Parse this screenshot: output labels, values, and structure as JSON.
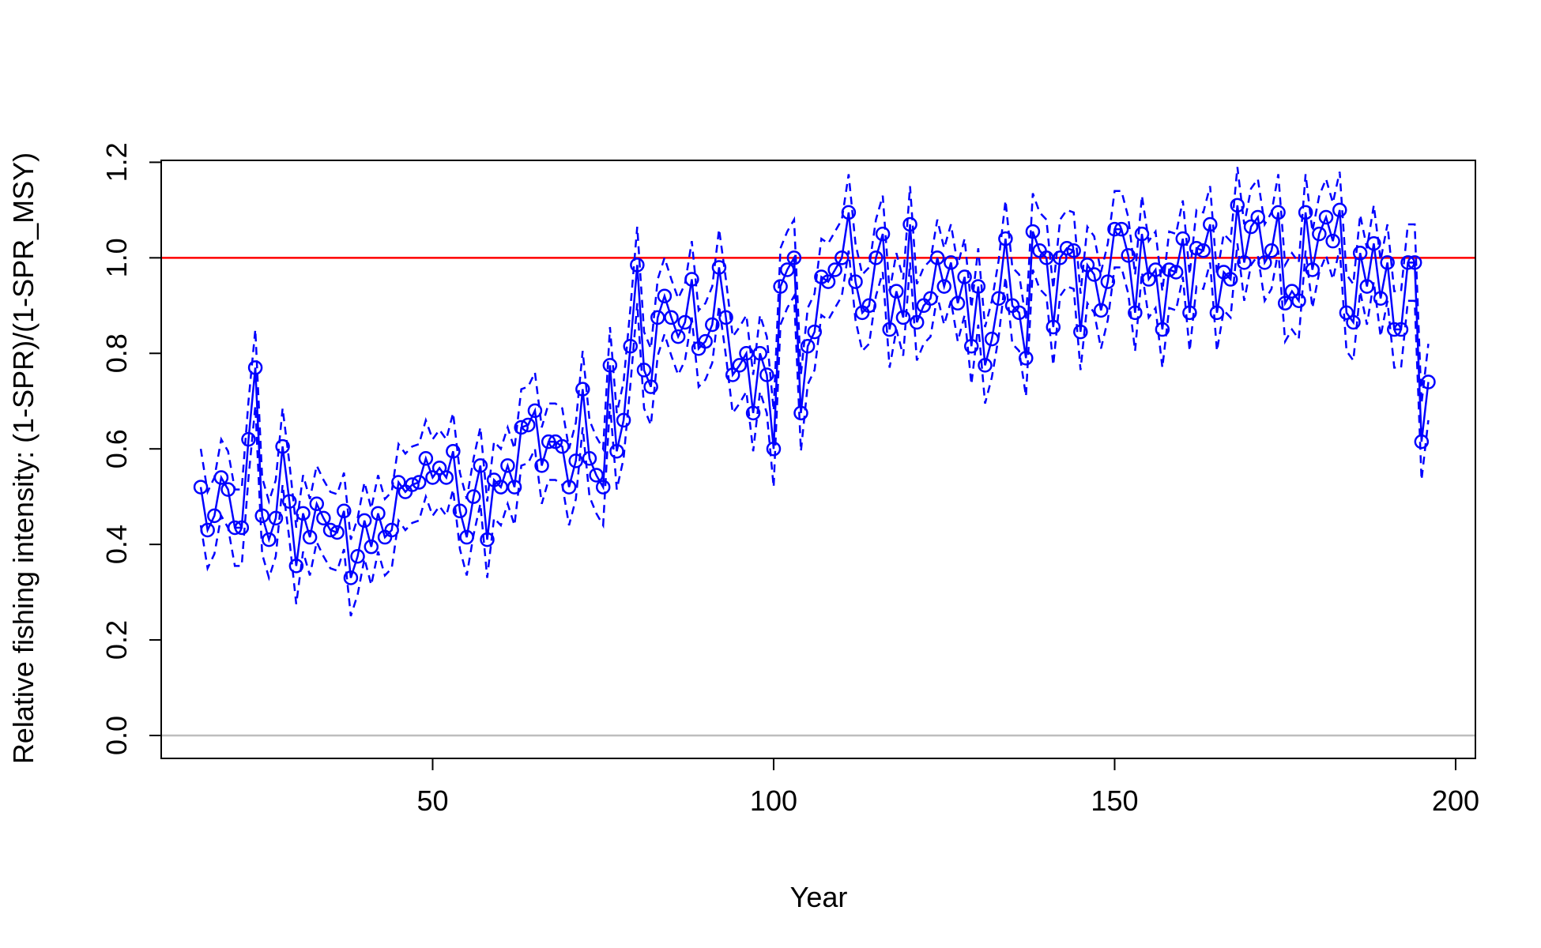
{
  "chart_data": {
    "type": "line",
    "x_label": "Year",
    "y_label": "Relative fishing intensity: (1-SPR)/(1-SPR_MSY)",
    "xlim": [
      10.2,
      202.9
    ],
    "ylim": [
      -0.048,
      1.204
    ],
    "xticks": [
      50,
      100,
      150,
      200
    ],
    "yticks": [
      {
        "value": 0,
        "label": "0.0"
      },
      0.2,
      0.4,
      0.6,
      0.8,
      {
        "value": 1,
        "label": "1.0"
      },
      1.2
    ],
    "hlines": [
      {
        "value": 0,
        "color": "#bebebe"
      },
      {
        "value": 1,
        "color": "#ff0000"
      }
    ],
    "x": [
      16,
      17,
      18,
      19,
      20,
      21,
      22,
      23,
      24,
      25,
      26,
      27,
      28,
      29,
      30,
      31,
      32,
      33,
      34,
      35,
      36,
      37,
      38,
      39,
      40,
      41,
      42,
      43,
      44,
      45,
      46,
      47,
      48,
      49,
      50,
      51,
      52,
      53,
      54,
      55,
      56,
      57,
      58,
      59,
      60,
      61,
      62,
      63,
      64,
      65,
      66,
      67,
      68,
      69,
      70,
      71,
      72,
      73,
      74,
      75,
      76,
      77,
      78,
      79,
      80,
      81,
      82,
      83,
      84,
      85,
      86,
      87,
      88,
      89,
      90,
      91,
      92,
      93,
      94,
      95,
      96,
      97,
      98,
      99,
      100,
      101,
      102,
      103,
      104,
      105,
      106,
      107,
      108,
      109,
      110,
      111,
      112,
      113,
      114,
      115,
      116,
      117,
      118,
      119,
      120,
      121,
      122,
      123,
      124,
      125,
      126,
      127,
      128,
      129,
      130,
      131,
      132,
      133,
      134,
      135,
      136,
      137,
      138,
      139,
      140,
      141,
      142,
      143,
      144,
      145,
      146,
      147,
      148,
      149,
      150,
      151,
      152,
      153,
      154,
      155,
      156,
      157,
      158,
      159,
      160,
      161,
      162,
      163,
      164,
      165,
      166,
      167,
      168,
      169,
      170,
      171,
      172,
      173,
      174,
      175,
      176,
      177,
      178,
      179,
      180,
      181,
      182,
      183,
      184,
      185,
      186,
      187,
      188,
      189,
      190,
      191,
      192,
      193,
      194,
      195,
      196
    ],
    "series": [
      {
        "color": "#0000ff",
        "style": "dashed",
        "markers": false,
        "values": [
          0.6,
          0.51,
          0.54,
          0.62,
          0.595,
          0.515,
          0.515,
          0.7,
          0.85,
          0.54,
          0.49,
          0.535,
          0.685,
          0.57,
          0.435,
          0.545,
          0.495,
          0.565,
          0.535,
          0.51,
          0.505,
          0.55,
          0.41,
          0.455,
          0.53,
          0.475,
          0.545,
          0.495,
          0.51,
          0.61,
          0.59,
          0.605,
          0.61,
          0.66,
          0.62,
          0.64,
          0.62,
          0.675,
          0.55,
          0.495,
          0.58,
          0.645,
          0.49,
          0.615,
          0.6,
          0.645,
          0.6,
          0.725,
          0.73,
          0.76,
          0.645,
          0.695,
          0.695,
          0.685,
          0.6,
          0.655,
          0.805,
          0.66,
          0.625,
          0.6,
          0.855,
          0.675,
          0.74,
          0.895,
          1.065,
          0.845,
          0.81,
          0.955,
          1.0,
          0.955,
          0.915,
          0.945,
          1.035,
          0.89,
          0.905,
          0.94,
          1.06,
          0.955,
          0.835,
          0.855,
          0.88,
          0.755,
          0.88,
          0.835,
          0.68,
          1.02,
          1.055,
          1.08,
          0.755,
          0.895,
          0.925,
          1.04,
          1.03,
          1.055,
          1.08,
          1.175,
          1.03,
          0.965,
          0.98,
          1.08,
          1.13,
          0.93,
          1.01,
          0.955,
          1.15,
          0.945,
          0.98,
          0.995,
          1.08,
          1.02,
          1.07,
          0.985,
          1.04,
          0.895,
          1.02,
          0.855,
          0.91,
          0.995,
          1.12,
          0.98,
          0.965,
          0.87,
          1.135,
          1.095,
          1.08,
          0.935,
          1.08,
          1.1,
          1.095,
          0.925,
          1.065,
          1.045,
          0.97,
          1.03,
          1.14,
          1.14,
          1.085,
          0.965,
          1.13,
          1.035,
          1.055,
          0.93,
          1.055,
          1.05,
          1.12,
          0.965,
          1.1,
          1.095,
          1.15,
          0.965,
          1.05,
          1.035,
          1.19,
          1.07,
          1.145,
          1.165,
          1.07,
          1.095,
          1.175,
          0.985,
          1.01,
          0.99,
          1.175,
          1.055,
          1.13,
          1.165,
          1.115,
          1.18,
          0.965,
          0.945,
          1.09,
          1.02,
          1.11,
          0.995,
          1.07,
          0.93,
          0.93,
          1.07,
          1.07,
          0.695,
          0.82
        ]
      },
      {
        "color": "#0000ff",
        "style": "dashed",
        "markers": false,
        "values": [
          0.44,
          0.35,
          0.38,
          0.46,
          0.435,
          0.355,
          0.355,
          0.54,
          0.69,
          0.38,
          0.33,
          0.375,
          0.525,
          0.41,
          0.275,
          0.385,
          0.335,
          0.405,
          0.375,
          0.35,
          0.345,
          0.39,
          0.25,
          0.295,
          0.37,
          0.315,
          0.385,
          0.335,
          0.35,
          0.45,
          0.43,
          0.445,
          0.45,
          0.5,
          0.46,
          0.48,
          0.46,
          0.515,
          0.39,
          0.335,
          0.42,
          0.485,
          0.33,
          0.455,
          0.44,
          0.485,
          0.44,
          0.565,
          0.57,
          0.6,
          0.485,
          0.535,
          0.535,
          0.525,
          0.44,
          0.495,
          0.645,
          0.5,
          0.465,
          0.44,
          0.695,
          0.515,
          0.58,
          0.735,
          0.905,
          0.685,
          0.65,
          0.795,
          0.84,
          0.795,
          0.755,
          0.785,
          0.875,
          0.73,
          0.745,
          0.78,
          0.9,
          0.795,
          0.675,
          0.695,
          0.72,
          0.595,
          0.72,
          0.675,
          0.52,
          0.86,
          0.895,
          0.92,
          0.595,
          0.735,
          0.765,
          0.88,
          0.87,
          0.895,
          0.92,
          1.015,
          0.87,
          0.805,
          0.82,
          0.92,
          0.97,
          0.77,
          0.85,
          0.795,
          0.99,
          0.785,
          0.82,
          0.835,
          0.92,
          0.86,
          0.91,
          0.825,
          0.88,
          0.735,
          0.86,
          0.695,
          0.75,
          0.835,
          0.96,
          0.82,
          0.805,
          0.71,
          0.975,
          0.935,
          0.92,
          0.775,
          0.92,
          0.94,
          0.935,
          0.765,
          0.905,
          0.885,
          0.81,
          0.87,
          0.98,
          0.98,
          0.925,
          0.805,
          0.97,
          0.875,
          0.895,
          0.77,
          0.895,
          0.89,
          0.96,
          0.805,
          0.94,
          0.935,
          0.99,
          0.805,
          0.89,
          0.875,
          1.03,
          0.91,
          0.985,
          1.005,
          0.91,
          0.935,
          1.015,
          0.825,
          0.85,
          0.83,
          1.015,
          0.895,
          0.97,
          1.005,
          0.955,
          1.02,
          0.805,
          0.785,
          0.93,
          0.86,
          0.95,
          0.835,
          0.91,
          0.77,
          0.77,
          0.91,
          0.91,
          0.535,
          0.66
        ]
      },
      {
        "color": "#0000ff",
        "style": "solid",
        "markers": true,
        "values": [
          0.52,
          0.43,
          0.46,
          0.54,
          0.515,
          0.435,
          0.435,
          0.62,
          0.77,
          0.46,
          0.41,
          0.455,
          0.605,
          0.49,
          0.355,
          0.465,
          0.415,
          0.485,
          0.455,
          0.43,
          0.425,
          0.47,
          0.33,
          0.375,
          0.45,
          0.395,
          0.465,
          0.415,
          0.43,
          0.53,
          0.51,
          0.525,
          0.53,
          0.58,
          0.54,
          0.56,
          0.54,
          0.595,
          0.47,
          0.415,
          0.5,
          0.565,
          0.41,
          0.535,
          0.52,
          0.565,
          0.52,
          0.645,
          0.65,
          0.68,
          0.565,
          0.615,
          0.615,
          0.605,
          0.52,
          0.575,
          0.725,
          0.58,
          0.545,
          0.52,
          0.775,
          0.595,
          0.66,
          0.815,
          0.985,
          0.765,
          0.73,
          0.875,
          0.92,
          0.875,
          0.835,
          0.865,
          0.955,
          0.81,
          0.825,
          0.86,
          0.98,
          0.875,
          0.755,
          0.775,
          0.8,
          0.675,
          0.8,
          0.755,
          0.6,
          0.94,
          0.975,
          1.0,
          0.675,
          0.815,
          0.845,
          0.96,
          0.95,
          0.975,
          1.0,
          1.095,
          0.95,
          0.885,
          0.9,
          1.0,
          1.05,
          0.85,
          0.93,
          0.875,
          1.07,
          0.865,
          0.9,
          0.915,
          1.0,
          0.94,
          0.99,
          0.905,
          0.96,
          0.815,
          0.94,
          0.775,
          0.83,
          0.915,
          1.04,
          0.9,
          0.885,
          0.79,
          1.055,
          1.015,
          1.0,
          0.855,
          1.0,
          1.02,
          1.015,
          0.845,
          0.985,
          0.965,
          0.89,
          0.95,
          1.06,
          1.06,
          1.005,
          0.885,
          1.05,
          0.955,
          0.975,
          0.85,
          0.975,
          0.97,
          1.04,
          0.885,
          1.02,
          1.015,
          1.07,
          0.885,
          0.97,
          0.955,
          1.11,
          0.99,
          1.065,
          1.085,
          0.99,
          1.015,
          1.095,
          0.905,
          0.93,
          0.91,
          1.095,
          0.975,
          1.05,
          1.085,
          1.035,
          1.1,
          0.885,
          0.865,
          1.01,
          0.94,
          1.03,
          0.915,
          0.99,
          0.85,
          0.85,
          0.99,
          0.99,
          0.615,
          0.74
        ]
      }
    ]
  }
}
